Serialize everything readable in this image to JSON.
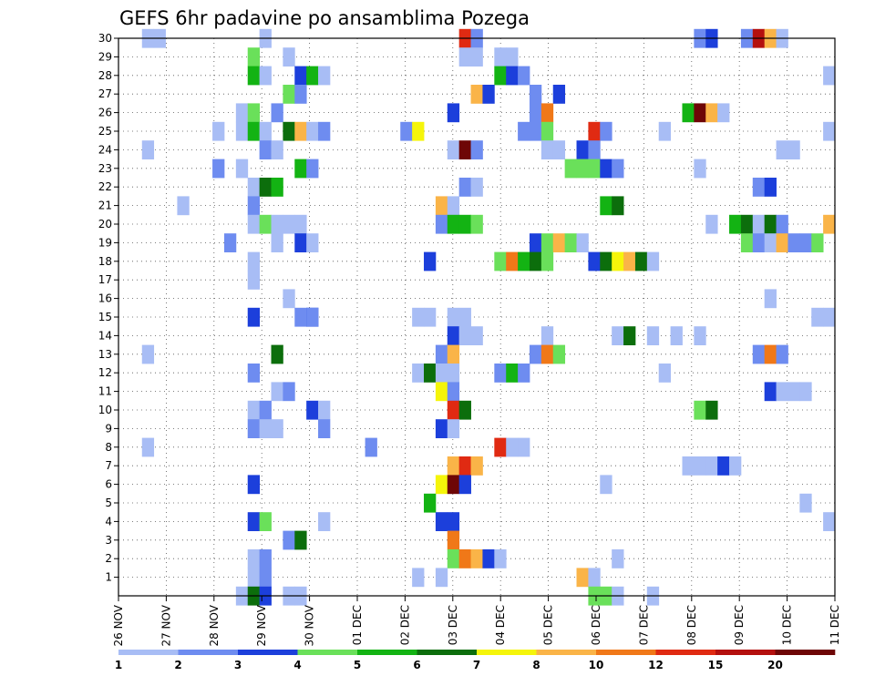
{
  "chart_data": {
    "type": "heatmap",
    "title": "GEFS 6hr padavine po ansamblima Pozega",
    "xlabel": "",
    "ylabel": "",
    "x_tick_labels": [
      "26 NOV",
      "27 NOV",
      "28 NOV",
      "29 NOV",
      "30 NOV",
      "01 DEC",
      "02 DEC",
      "03 DEC",
      "04 DEC",
      "05 DEC",
      "06 DEC",
      "07 DEC",
      "08 DEC",
      "09 DEC",
      "10 DEC",
      "11 DEC"
    ],
    "y_tick_labels": [
      "1",
      "2",
      "3",
      "4",
      "5",
      "6",
      "7",
      "8",
      "9",
      "10",
      "11",
      "12",
      "13",
      "14",
      "15",
      "16",
      "17",
      "18",
      "19",
      "20",
      "21",
      "22",
      "23",
      "24",
      "25",
      "26",
      "27",
      "28",
      "29",
      "30"
    ],
    "xlim": [
      0,
      61
    ],
    "ylim": [
      0,
      30
    ],
    "grid": true,
    "colorbar_levels": [
      "1",
      "2",
      "3",
      "4",
      "5",
      "6",
      "7",
      "8",
      "10",
      "12",
      "15",
      "20"
    ],
    "colorbar_colors": [
      "#a8bdf5",
      "#6e8cf0",
      "#1c3fdb",
      "#6ae05a",
      "#13b313",
      "#0c6e0c",
      "#f5f50a",
      "#fab448",
      "#f07818",
      "#e02a12",
      "#b4100e",
      "#6e0606"
    ],
    "cells": [
      [
        2,
        30,
        0
      ],
      [
        3,
        30,
        0
      ],
      [
        12,
        30,
        0
      ],
      [
        29,
        30,
        9
      ],
      [
        30,
        30,
        1
      ],
      [
        49,
        30,
        1
      ],
      [
        50,
        30,
        2
      ],
      [
        53,
        30,
        1
      ],
      [
        54,
        30,
        10
      ],
      [
        55,
        30,
        7
      ],
      [
        56,
        30,
        0
      ],
      [
        11,
        29,
        3
      ],
      [
        14,
        29,
        0
      ],
      [
        29,
        29,
        0
      ],
      [
        30,
        29,
        0
      ],
      [
        32,
        29,
        0
      ],
      [
        33,
        29,
        0
      ],
      [
        11,
        28,
        4
      ],
      [
        12,
        28,
        0
      ],
      [
        15,
        28,
        2
      ],
      [
        16,
        28,
        4
      ],
      [
        17,
        28,
        0
      ],
      [
        32,
        28,
        4
      ],
      [
        33,
        28,
        2
      ],
      [
        34,
        28,
        1
      ],
      [
        60,
        28,
        0
      ],
      [
        14,
        27,
        3
      ],
      [
        15,
        27,
        1
      ],
      [
        30,
        27,
        7
      ],
      [
        31,
        27,
        2
      ],
      [
        35,
        27,
        1
      ],
      [
        37,
        27,
        2
      ],
      [
        10,
        26,
        0
      ],
      [
        11,
        26,
        3
      ],
      [
        13,
        26,
        1
      ],
      [
        28,
        26,
        2
      ],
      [
        35,
        26,
        1
      ],
      [
        36,
        26,
        8
      ],
      [
        48,
        26,
        4
      ],
      [
        49,
        26,
        11
      ],
      [
        50,
        26,
        7
      ],
      [
        51,
        26,
        0
      ],
      [
        8,
        25,
        0
      ],
      [
        10,
        25,
        0
      ],
      [
        11,
        25,
        4
      ],
      [
        12,
        25,
        0
      ],
      [
        14,
        25,
        5
      ],
      [
        15,
        25,
        7
      ],
      [
        16,
        25,
        0
      ],
      [
        17,
        25,
        1
      ],
      [
        24,
        25,
        1
      ],
      [
        25,
        25,
        6
      ],
      [
        34,
        25,
        1
      ],
      [
        35,
        25,
        1
      ],
      [
        36,
        25,
        3
      ],
      [
        40,
        25,
        9
      ],
      [
        41,
        25,
        1
      ],
      [
        46,
        25,
        0
      ],
      [
        60,
        25,
        0
      ],
      [
        2,
        24,
        0
      ],
      [
        12,
        24,
        1
      ],
      [
        13,
        24,
        0
      ],
      [
        28,
        24,
        0
      ],
      [
        29,
        24,
        11
      ],
      [
        30,
        24,
        1
      ],
      [
        36,
        24,
        0
      ],
      [
        37,
        24,
        0
      ],
      [
        39,
        24,
        2
      ],
      [
        40,
        24,
        1
      ],
      [
        56,
        24,
        0
      ],
      [
        57,
        24,
        0
      ],
      [
        8,
        23,
        1
      ],
      [
        10,
        23,
        0
      ],
      [
        15,
        23,
        4
      ],
      [
        16,
        23,
        1
      ],
      [
        38,
        23,
        3
      ],
      [
        39,
        23,
        3
      ],
      [
        40,
        23,
        3
      ],
      [
        41,
        23,
        2
      ],
      [
        42,
        23,
        1
      ],
      [
        49,
        23,
        0
      ],
      [
        11,
        22,
        0
      ],
      [
        12,
        22,
        5
      ],
      [
        13,
        22,
        4
      ],
      [
        29,
        22,
        1
      ],
      [
        30,
        22,
        0
      ],
      [
        54,
        22,
        1
      ],
      [
        55,
        22,
        2
      ],
      [
        5,
        21,
        0
      ],
      [
        11,
        21,
        1
      ],
      [
        27,
        21,
        7
      ],
      [
        28,
        21,
        0
      ],
      [
        41,
        21,
        4
      ],
      [
        42,
        21,
        5
      ],
      [
        11,
        20,
        0
      ],
      [
        12,
        20,
        3
      ],
      [
        13,
        20,
        0
      ],
      [
        14,
        20,
        0
      ],
      [
        15,
        20,
        0
      ],
      [
        27,
        20,
        1
      ],
      [
        28,
        20,
        4
      ],
      [
        29,
        20,
        4
      ],
      [
        30,
        20,
        3
      ],
      [
        50,
        20,
        0
      ],
      [
        52,
        20,
        4
      ],
      [
        53,
        20,
        5
      ],
      [
        54,
        20,
        0
      ],
      [
        55,
        20,
        5
      ],
      [
        56,
        20,
        1
      ],
      [
        60,
        20,
        7
      ],
      [
        9,
        19,
        1
      ],
      [
        13,
        19,
        0
      ],
      [
        15,
        19,
        2
      ],
      [
        16,
        19,
        0
      ],
      [
        35,
        19,
        2
      ],
      [
        36,
        19,
        3
      ],
      [
        37,
        19,
        7
      ],
      [
        38,
        19,
        3
      ],
      [
        39,
        19,
        0
      ],
      [
        53,
        19,
        3
      ],
      [
        54,
        19,
        1
      ],
      [
        55,
        19,
        0
      ],
      [
        56,
        19,
        7
      ],
      [
        57,
        19,
        1
      ],
      [
        58,
        19,
        1
      ],
      [
        59,
        19,
        3
      ],
      [
        11,
        18,
        0
      ],
      [
        26,
        18,
        2
      ],
      [
        32,
        18,
        3
      ],
      [
        33,
        18,
        8
      ],
      [
        34,
        18,
        4
      ],
      [
        35,
        18,
        5
      ],
      [
        36,
        18,
        3
      ],
      [
        40,
        18,
        2
      ],
      [
        41,
        18,
        5
      ],
      [
        42,
        18,
        6
      ],
      [
        43,
        18,
        7
      ],
      [
        44,
        18,
        5
      ],
      [
        45,
        18,
        0
      ],
      [
        11,
        17,
        0
      ],
      [
        14,
        16,
        0
      ],
      [
        55,
        16,
        0
      ],
      [
        25,
        15,
        0
      ],
      [
        26,
        15,
        0
      ],
      [
        29,
        15,
        0
      ],
      [
        15,
        15,
        1
      ],
      [
        16,
        15,
        2
      ],
      [
        59,
        15,
        0
      ],
      [
        11,
        15,
        2
      ],
      [
        28,
        15,
        0
      ],
      [
        60,
        15,
        0
      ],
      [
        16,
        15,
        1
      ],
      [
        28,
        14,
        2
      ],
      [
        29,
        14,
        0
      ],
      [
        30,
        14,
        0
      ],
      [
        36,
        14,
        0
      ],
      [
        42,
        14,
        0
      ],
      [
        43,
        14,
        5
      ],
      [
        45,
        14,
        0
      ],
      [
        47,
        14,
        0
      ],
      [
        49,
        14,
        0
      ],
      [
        2,
        13,
        0
      ],
      [
        13,
        13,
        5
      ],
      [
        27,
        13,
        1
      ],
      [
        28,
        13,
        7
      ],
      [
        35,
        13,
        1
      ],
      [
        36,
        13,
        8
      ],
      [
        37,
        13,
        3
      ],
      [
        54,
        13,
        1
      ],
      [
        55,
        13,
        8
      ],
      [
        56,
        13,
        1
      ],
      [
        11,
        12,
        1
      ],
      [
        25,
        12,
        0
      ],
      [
        26,
        12,
        5
      ],
      [
        27,
        12,
        0
      ],
      [
        28,
        12,
        0
      ],
      [
        32,
        12,
        1
      ],
      [
        33,
        12,
        4
      ],
      [
        34,
        12,
        1
      ],
      [
        46,
        12,
        0
      ],
      [
        13,
        11,
        0
      ],
      [
        14,
        11,
        1
      ],
      [
        27,
        11,
        6
      ],
      [
        28,
        11,
        1
      ],
      [
        55,
        11,
        2
      ],
      [
        56,
        11,
        0
      ],
      [
        57,
        11,
        0
      ],
      [
        58,
        11,
        0
      ],
      [
        11,
        10,
        0
      ],
      [
        12,
        10,
        1
      ],
      [
        16,
        10,
        2
      ],
      [
        17,
        10,
        0
      ],
      [
        28,
        10,
        9
      ],
      [
        29,
        10,
        5
      ],
      [
        49,
        10,
        3
      ],
      [
        50,
        10,
        5
      ],
      [
        11,
        9,
        1
      ],
      [
        12,
        9,
        0
      ],
      [
        13,
        9,
        0
      ],
      [
        17,
        9,
        1
      ],
      [
        27,
        9,
        2
      ],
      [
        28,
        9,
        0
      ],
      [
        2,
        8,
        0
      ],
      [
        21,
        8,
        1
      ],
      [
        32,
        8,
        9
      ],
      [
        33,
        8,
        0
      ],
      [
        34,
        8,
        0
      ],
      [
        28,
        7,
        7
      ],
      [
        29,
        7,
        9
      ],
      [
        30,
        7,
        7
      ],
      [
        48,
        7,
        0
      ],
      [
        49,
        7,
        0
      ],
      [
        50,
        7,
        0
      ],
      [
        51,
        7,
        2
      ],
      [
        52,
        7,
        0
      ],
      [
        11,
        6,
        2
      ],
      [
        27,
        6,
        6
      ],
      [
        28,
        6,
        11
      ],
      [
        29,
        6,
        2
      ],
      [
        41,
        6,
        0
      ],
      [
        26,
        5,
        4
      ],
      [
        58,
        5,
        0
      ],
      [
        11,
        4,
        2
      ],
      [
        12,
        4,
        3
      ],
      [
        17,
        4,
        0
      ],
      [
        27,
        4,
        2
      ],
      [
        28,
        4,
        2
      ],
      [
        60,
        4,
        0
      ],
      [
        14,
        3,
        1
      ],
      [
        15,
        3,
        5
      ],
      [
        28,
        3,
        8
      ],
      [
        11,
        2,
        0
      ],
      [
        12,
        2,
        1
      ],
      [
        28,
        2,
        3
      ],
      [
        29,
        2,
        8
      ],
      [
        30,
        2,
        7
      ],
      [
        31,
        2,
        2
      ],
      [
        32,
        2,
        0
      ],
      [
        42,
        2,
        0
      ],
      [
        11,
        1,
        0
      ],
      [
        12,
        1,
        1
      ],
      [
        25,
        1,
        0
      ],
      [
        27,
        1,
        0
      ],
      [
        39,
        1,
        7
      ],
      [
        40,
        1,
        0
      ],
      [
        10,
        0,
        0
      ],
      [
        11,
        0,
        5
      ],
      [
        12,
        0,
        2
      ],
      [
        14,
        0,
        0
      ],
      [
        15,
        0,
        0
      ],
      [
        40,
        0,
        3
      ],
      [
        41,
        0,
        3
      ],
      [
        42,
        0,
        0
      ],
      [
        45,
        0,
        0
      ]
    ]
  }
}
